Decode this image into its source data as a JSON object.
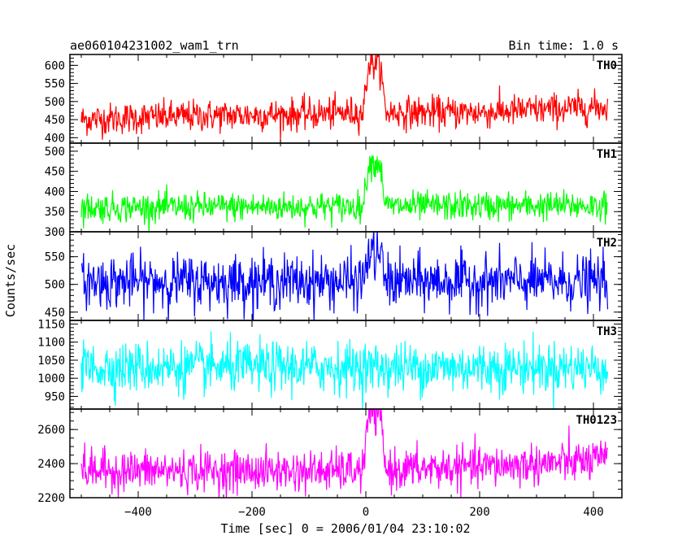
{
  "header": {
    "title": "ae060104231002_wam1_trn",
    "bin_time": "Bin time: 1.0 s"
  },
  "chart_data": {
    "type": "line",
    "title": "ae060104231002_wam1_trn",
    "xlabel": "Time [sec] 0 = 2006/01/04 23:10:02",
    "ylabel": "Counts/sec",
    "xlim": [
      -520,
      450
    ],
    "x_ticks": [
      -400,
      -200,
      0,
      200,
      400
    ],
    "x_tick_labels": [
      "−400",
      "−200",
      "0",
      "200",
      "400"
    ],
    "x_data_range": [
      -500,
      425
    ],
    "panels": [
      {
        "name": "TH0",
        "color": "#ff0000",
        "ylim": [
          385,
          630
        ],
        "y_ticks": [
          400,
          450,
          500,
          550,
          600
        ],
        "baseline": [
          [
            -500,
            450
          ],
          [
            -300,
            460
          ],
          [
            -100,
            465
          ],
          [
            0,
            470
          ],
          [
            200,
            470
          ],
          [
            425,
            485
          ]
        ],
        "noise_sd": 22,
        "peak": 605,
        "peak_x": [
          5,
          25
        ]
      },
      {
        "name": "TH1",
        "color": "#00ff00",
        "ylim": [
          300,
          520
        ],
        "y_ticks": [
          300,
          350,
          400,
          450,
          500
        ],
        "baseline": [
          [
            -500,
            360
          ],
          [
            425,
            365
          ]
        ],
        "noise_sd": 18,
        "peak": 470,
        "peak_x": [
          5,
          25
        ]
      },
      {
        "name": "TH2",
        "color": "#0000ff",
        "ylim": [
          435,
          595
        ],
        "y_ticks": [
          450,
          500,
          550
        ],
        "baseline": [
          [
            -500,
            505
          ],
          [
            425,
            505
          ]
        ],
        "noise_sd": 24,
        "peak": 555,
        "peak_x": [
          5,
          25
        ]
      },
      {
        "name": "TH3",
        "color": "#00ffff",
        "ylim": [
          915,
          1160
        ],
        "y_ticks": [
          950,
          1000,
          1050,
          1100,
          1150
        ],
        "baseline": [
          [
            -500,
            1030
          ],
          [
            425,
            1030
          ]
        ],
        "noise_sd": 35,
        "peak": 1030,
        "peak_x": [
          5,
          25
        ]
      },
      {
        "name": "TH0123",
        "color": "#ff00ff",
        "ylim": [
          2200,
          2720
        ],
        "y_ticks": [
          2200,
          2400,
          2600
        ],
        "minor_step": 50,
        "baseline": [
          [
            -500,
            2360
          ],
          [
            -100,
            2355
          ],
          [
            0,
            2360
          ],
          [
            200,
            2380
          ],
          [
            425,
            2420
          ]
        ],
        "noise_sd": 60,
        "peak": 2690,
        "peak_x": [
          5,
          25
        ]
      }
    ]
  }
}
